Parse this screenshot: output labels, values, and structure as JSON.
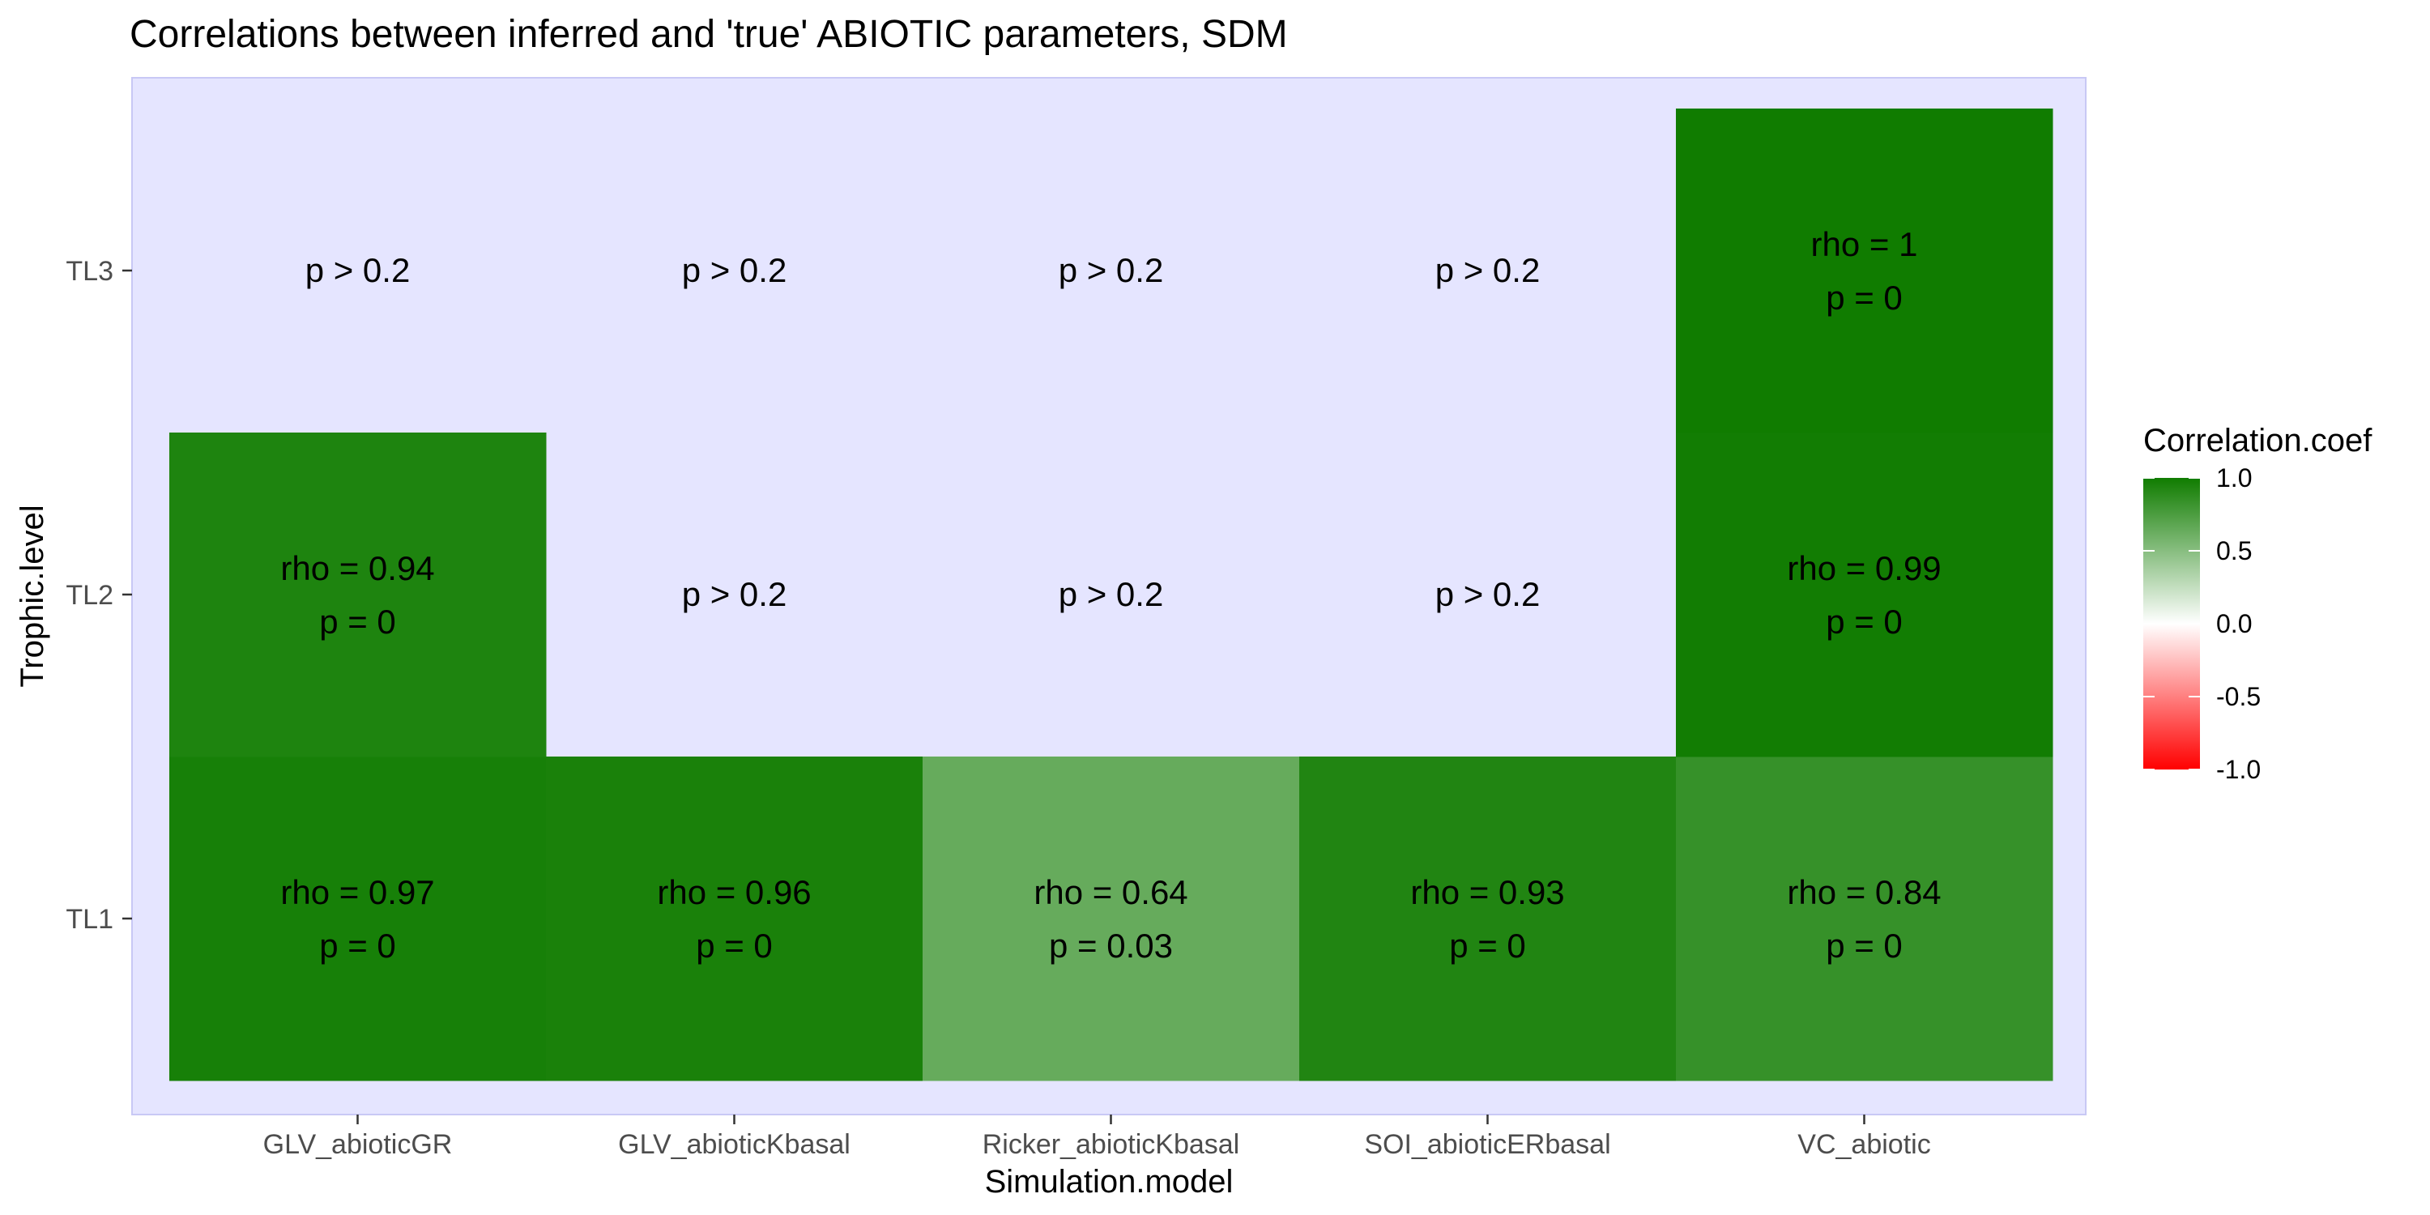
{
  "chart_data": {
    "type": "heatmap",
    "title": "Correlations between inferred and 'true' ABIOTIC parameters, SDM",
    "xlabel": "Simulation.model",
    "ylabel": "Trophic.level",
    "x_categories": [
      "GLV_abioticGR",
      "GLV_abioticKbasal",
      "Ricker_abioticKbasal",
      "SOI_abioticERbasal",
      "VC_abiotic"
    ],
    "y_categories": [
      "TL1",
      "TL2",
      "TL3"
    ],
    "cells": [
      {
        "x": "GLV_abioticGR",
        "y": "TL1",
        "value": 0.97,
        "label1": "rho = 0.97",
        "label2": "p = 0"
      },
      {
        "x": "GLV_abioticKbasal",
        "y": "TL1",
        "value": 0.96,
        "label1": "rho = 0.96",
        "label2": "p = 0"
      },
      {
        "x": "Ricker_abioticKbasal",
        "y": "TL1",
        "value": 0.64,
        "label1": "rho = 0.64",
        "label2": "p = 0.03"
      },
      {
        "x": "SOI_abioticERbasal",
        "y": "TL1",
        "value": 0.93,
        "label1": "rho = 0.93",
        "label2": "p = 0"
      },
      {
        "x": "VC_abiotic",
        "y": "TL1",
        "value": 0.84,
        "label1": "rho = 0.84",
        "label2": "p = 0"
      },
      {
        "x": "GLV_abioticGR",
        "y": "TL2",
        "value": 0.94,
        "label1": "rho = 0.94",
        "label2": "p = 0"
      },
      {
        "x": "GLV_abioticKbasal",
        "y": "TL2",
        "value": null,
        "label1": "p >  0.2"
      },
      {
        "x": "Ricker_abioticKbasal",
        "y": "TL2",
        "value": null,
        "label1": "p >  0.2"
      },
      {
        "x": "SOI_abioticERbasal",
        "y": "TL2",
        "value": null,
        "label1": "p >  0.2"
      },
      {
        "x": "VC_abiotic",
        "y": "TL2",
        "value": 0.99,
        "label1": "rho = 0.99",
        "label2": "p = 0"
      },
      {
        "x": "GLV_abioticGR",
        "y": "TL3",
        "value": null,
        "label1": "p >  0.2"
      },
      {
        "x": "GLV_abioticKbasal",
        "y": "TL3",
        "value": null,
        "label1": "p >  0.2"
      },
      {
        "x": "Ricker_abioticKbasal",
        "y": "TL3",
        "value": null,
        "label1": "p >  0.2"
      },
      {
        "x": "SOI_abioticERbasal",
        "y": "TL3",
        "value": null,
        "label1": "p >  0.2"
      },
      {
        "x": "VC_abiotic",
        "y": "TL3",
        "value": 1.0,
        "label1": "rho = 1",
        "label2": "p = 0"
      }
    ],
    "legend": {
      "title": "Correlation.coef",
      "position": "right",
      "range": [
        -1,
        1
      ],
      "breaks": [
        1.0,
        0.5,
        0.0,
        -0.5,
        -1.0
      ],
      "break_labels": [
        "1.0",
        "0.5",
        "0.0",
        "-0.5",
        "-1.0"
      ]
    },
    "colors": {
      "high": "#107c00",
      "mid": "#ffffff",
      "low": "#ff0000",
      "panel_background": "#e5e5ff",
      "panel_border": "#c8c8f5",
      "text": "#000000",
      "axis_text": "#4d4d4d"
    },
    "grid": false
  }
}
